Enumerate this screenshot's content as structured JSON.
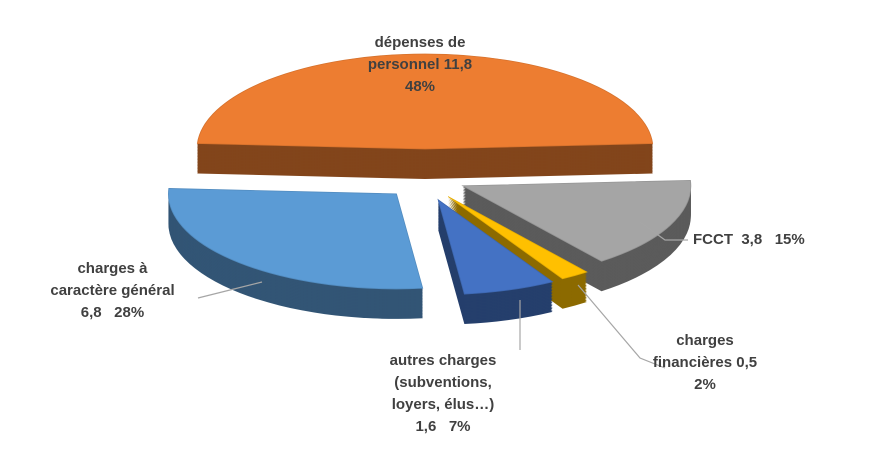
{
  "chart_data": {
    "type": "pie3d",
    "categories": [
      "dépenses de personnel",
      "FCCT",
      "charges financières",
      "autres charges (subventions, loyers, élus…)",
      "charges à caractère général"
    ],
    "values": [
      11.8,
      3.8,
      0.5,
      1.6,
      6.8
    ],
    "value_labels": [
      "11,8",
      "3,8",
      "0,5",
      "1,6",
      "6,8"
    ],
    "percentages": [
      48,
      15,
      2,
      7,
      28
    ],
    "percentage_labels": [
      "48%",
      "15%",
      "2%",
      "7%",
      "28%"
    ],
    "colors": [
      "#ed7d31",
      "#a5a5a5",
      "#ffc000",
      "#4472c4",
      "#5b9bd5"
    ]
  }
}
